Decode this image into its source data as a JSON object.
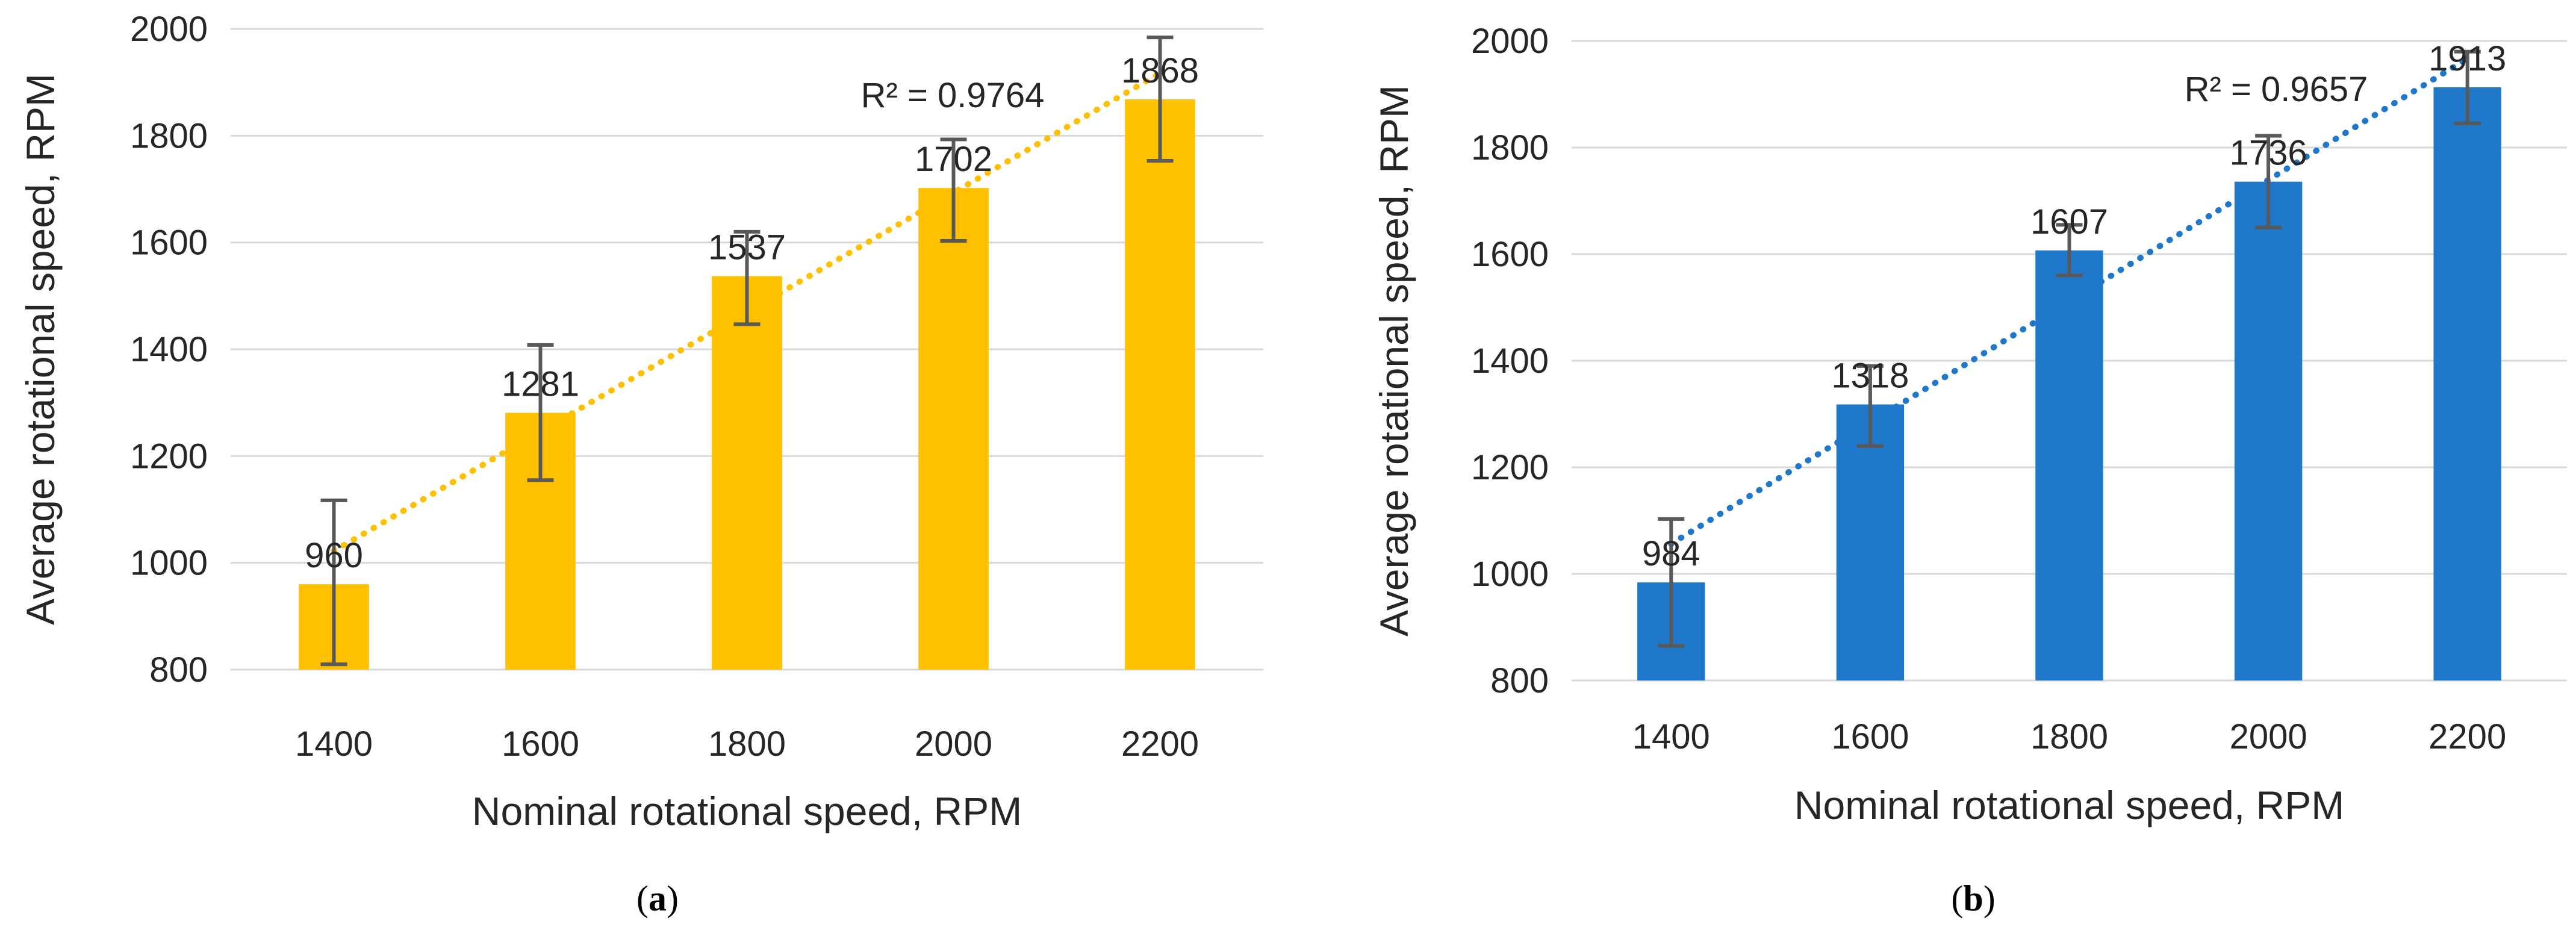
{
  "chart_data": [
    {
      "type": "bar",
      "panel_label": "a",
      "categories": [
        "1400",
        "1600",
        "1800",
        "2000",
        "2200"
      ],
      "values": [
        960,
        1281,
        1537,
        1702,
        1868
      ],
      "error_low": [
        810,
        1155,
        1447,
        1603,
        1753
      ],
      "error_high": [
        1117,
        1408,
        1620,
        1793,
        1984
      ],
      "data_labels": [
        "960",
        "1281",
        "1537",
        "1702",
        "1868"
      ],
      "trendline": {
        "type": "linear",
        "style": "dotted",
        "r2_label": "R² = 0.9764"
      },
      "bar_color": "#FFC000",
      "error_bar_color": "#595959",
      "xlabel": "Nominal rotational speed, RPM",
      "ylabel": "Average rotational speed, RPM",
      "ylim": [
        800,
        2000
      ],
      "yticks": [
        800,
        1000,
        1200,
        1400,
        1600,
        1800,
        2000
      ],
      "grid": true,
      "legend": "none"
    },
    {
      "type": "bar",
      "panel_label": "b",
      "categories": [
        "1400",
        "1600",
        "1800",
        "2000",
        "2200"
      ],
      "values": [
        984,
        1318,
        1607,
        1736,
        1913
      ],
      "error_low": [
        865,
        1240,
        1560,
        1650,
        1845
      ],
      "error_high": [
        1103,
        1390,
        1655,
        1822,
        1980
      ],
      "data_labels": [
        "984",
        "1318",
        "1607",
        "1736",
        "1913"
      ],
      "trendline": {
        "type": "linear",
        "style": "dotted",
        "r2_label": "R² = 0.9657"
      },
      "bar_color": "#1F77C9",
      "error_bar_color": "#595959",
      "xlabel": "Nominal rotational speed, RPM",
      "ylabel": "Average rotational speed, RPM",
      "ylim": [
        800,
        2000
      ],
      "yticks": [
        800,
        1000,
        1200,
        1400,
        1600,
        1800,
        2000
      ],
      "grid": true,
      "legend": "none"
    }
  ],
  "captions": [
    {
      "open": "(",
      "label": "a",
      "close": ")"
    },
    {
      "open": "(",
      "label": "b",
      "close": ")"
    }
  ]
}
